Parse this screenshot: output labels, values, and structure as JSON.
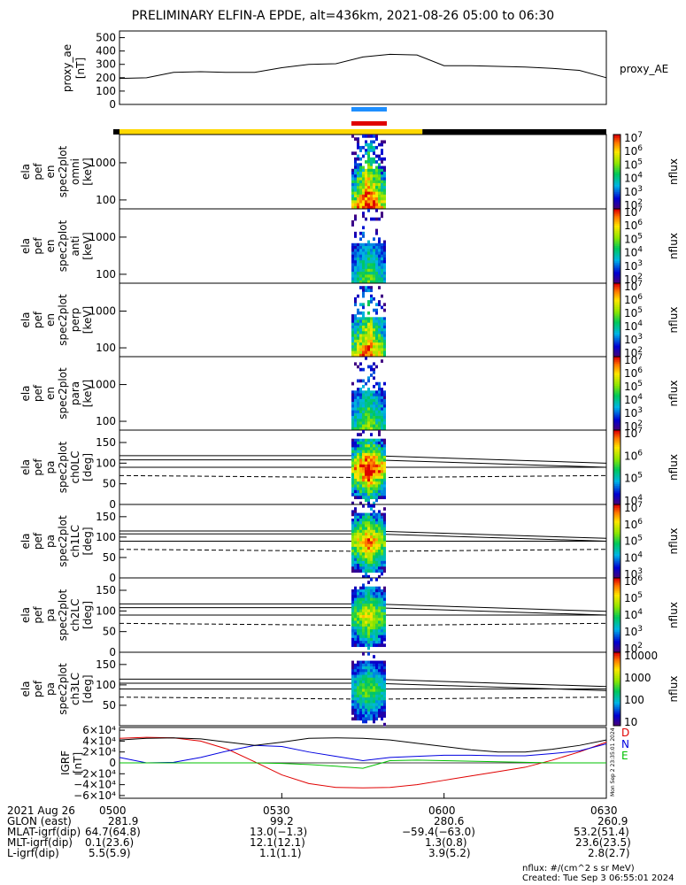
{
  "title": "PRELIMINARY ELFIN-A EPDE, alt=436km, 2021-08-26 05:00 to 06:30",
  "chart_data": [
    {
      "type": "line",
      "panel": "proxy_ae",
      "ylabel": [
        "proxy_ae",
        "[nT]"
      ],
      "right_label": "proxy_AE",
      "ylim": [
        0,
        550
      ],
      "yticks": [
        "500",
        "400",
        "300",
        "200",
        "100",
        "0"
      ],
      "x_minutes": [
        0,
        5,
        10,
        15,
        20,
        25,
        30,
        35,
        40,
        45,
        50,
        55,
        60,
        65,
        70,
        75,
        80,
        85,
        90
      ],
      "values": [
        195,
        200,
        240,
        245,
        240,
        240,
        275,
        300,
        305,
        355,
        375,
        370,
        290,
        290,
        285,
        280,
        270,
        255,
        200
      ],
      "grid": false
    },
    {
      "type": "heatmap",
      "panel": "ela_pef_en_spec2plot_omni",
      "ylabel": [
        "ela",
        "pef",
        "en",
        "spec2plot",
        "omni",
        "[keV]"
      ],
      "yscale": "log",
      "yticks": [
        "1000",
        "100"
      ],
      "colorbar": {
        "label": "nflux",
        "ticks": [
          "10^7",
          "10^6",
          "10^5",
          "10^4",
          "10^3",
          "10^2"
        ]
      }
    },
    {
      "type": "heatmap",
      "panel": "ela_pef_en_spec2plot_anti",
      "ylabel": [
        "ela",
        "pef",
        "en",
        "spec2plot",
        "anti",
        "[keV]"
      ],
      "yscale": "log",
      "yticks": [
        "1000",
        "100"
      ],
      "colorbar": {
        "label": "nflux",
        "ticks": [
          "10^7",
          "10^6",
          "10^5",
          "10^4",
          "10^3",
          "10^2"
        ]
      }
    },
    {
      "type": "heatmap",
      "panel": "ela_pef_en_spec2plot_perp",
      "ylabel": [
        "ela",
        "pef",
        "en",
        "spec2plot",
        "perp",
        "[keV]"
      ],
      "yscale": "log",
      "yticks": [
        "1000",
        "100"
      ],
      "colorbar": {
        "label": "nflux",
        "ticks": [
          "10^7",
          "10^6",
          "10^5",
          "10^4",
          "10^3",
          "10^2"
        ]
      }
    },
    {
      "type": "heatmap",
      "panel": "ela_pef_en_spec2plot_para",
      "ylabel": [
        "ela",
        "pef",
        "en",
        "spec2plot",
        "para",
        "[keV]"
      ],
      "yscale": "log",
      "yticks": [
        "1000",
        "100"
      ],
      "colorbar": {
        "label": "nflux",
        "ticks": [
          "10^7",
          "10^6",
          "10^5",
          "10^4",
          "10^3",
          "10^2"
        ]
      }
    },
    {
      "type": "heatmap",
      "panel": "ela_pef_pa_spec2plot_ch0LC",
      "ylabel": [
        "ela",
        "pef",
        "pa",
        "spec2plot",
        "ch0LC",
        "[deg]"
      ],
      "ylim": [
        0,
        180
      ],
      "yticks": [
        "150",
        "100",
        "50",
        "0"
      ],
      "colorbar": {
        "label": "nflux",
        "ticks": [
          "10^7",
          "10^6",
          "10^5",
          "10^4"
        ]
      }
    },
    {
      "type": "heatmap",
      "panel": "ela_pef_pa_spec2plot_ch1LC",
      "ylabel": [
        "ela",
        "pef",
        "pa",
        "spec2plot",
        "ch1LC",
        "[deg]"
      ],
      "ylim": [
        0,
        180
      ],
      "yticks": [
        "150",
        "100",
        "50",
        "0"
      ],
      "colorbar": {
        "label": "nflux",
        "ticks": [
          "10^7",
          "10^6",
          "10^5",
          "10^4",
          "10^3"
        ]
      }
    },
    {
      "type": "heatmap",
      "panel": "ela_pef_pa_spec2plot_ch2LC",
      "ylabel": [
        "ela",
        "pef",
        "pa",
        "spec2plot",
        "ch2LC",
        "[deg]"
      ],
      "ylim": [
        0,
        180
      ],
      "yticks": [
        "150",
        "100",
        "50",
        "0"
      ],
      "colorbar": {
        "label": "nflux",
        "ticks": [
          "10^6",
          "10^5",
          "10^4",
          "10^3",
          "10^2"
        ]
      }
    },
    {
      "type": "heatmap",
      "panel": "ela_pef_pa_spec2plot_ch3LC",
      "ylabel": [
        "ela",
        "pef",
        "pa",
        "spec2plot",
        "ch3LC",
        "[deg]"
      ],
      "ylim": [
        0,
        180
      ],
      "yticks": [
        "150",
        "100",
        "50"
      ],
      "colorbar": {
        "label": "nflux",
        "ticks": [
          "10000",
          "1000",
          "100",
          "10"
        ]
      }
    },
    {
      "type": "line",
      "panel": "IGRF",
      "ylabel": [
        "IGRF",
        "[nT]"
      ],
      "ylim": [
        -65000,
        65000
      ],
      "yticks": [
        "6×10⁴",
        "4×10⁴",
        "2×10⁴",
        "0",
        "−2×10⁴",
        "−4×10⁴",
        "−6×10⁴"
      ],
      "legend": [
        "D",
        "N",
        "E"
      ],
      "legend_colors": [
        "#e00000",
        "#0000e0",
        "#00c000"
      ],
      "x_minutes": [
        0,
        5,
        10,
        15,
        20,
        25,
        30,
        35,
        40,
        45,
        50,
        55,
        60,
        65,
        70,
        75,
        80,
        85,
        90
      ],
      "series": [
        {
          "name": "D",
          "color": "#e00000",
          "values": [
            45000,
            47000,
            46000,
            40000,
            25000,
            2000,
            -22000,
            -38000,
            -45000,
            -46000,
            -45000,
            -40000,
            -32000,
            -24000,
            -16000,
            -8000,
            5000,
            20000,
            38000
          ]
        },
        {
          "name": "N",
          "color": "#0000e0",
          "values": [
            10000,
            0,
            1000,
            10000,
            22000,
            32000,
            30000,
            20000,
            12000,
            4000,
            10000,
            12000,
            14000,
            14000,
            13000,
            13000,
            17000,
            22000,
            35000
          ]
        },
        {
          "name": "E",
          "color": "#00c000",
          "values": [
            0,
            0,
            0,
            0,
            0,
            0,
            -1000,
            -3000,
            -6000,
            -10000,
            4000,
            5000,
            4000,
            3000,
            2000,
            1000,
            0,
            0,
            0
          ]
        },
        {
          "name": "",
          "color": "#000000",
          "values": [
            42000,
            45000,
            46000,
            44000,
            38000,
            32000,
            38000,
            45000,
            46000,
            45000,
            42000,
            36000,
            30000,
            24000,
            20000,
            20000,
            25000,
            32000,
            42000
          ]
        }
      ]
    }
  ],
  "time_axis": {
    "x_range_minutes": [
      0,
      90
    ],
    "tick_minutes": [
      0,
      30,
      60,
      90
    ],
    "tick_labels": [
      "0500",
      "0530",
      "0600",
      "0630"
    ]
  },
  "annotations": {
    "date": "2021 Aug 26",
    "rows": [
      {
        "label": "GLON (east)",
        "values": [
          "281.9",
          "99.2",
          "280.6",
          "260.9"
        ]
      },
      {
        "label": "MLAT-igrf(dip)",
        "values": [
          "64.7(64.8)",
          "13.0(−1.3)",
          "−59.4(−63.0)",
          "53.2(51.4)"
        ]
      },
      {
        "label": "MLT-igrf(dip)",
        "values": [
          "0.1(23.6)",
          "12.1(12.1)",
          "1.3(0.8)",
          "23.6(23.5)"
        ]
      },
      {
        "label": "L-igrf(dip)",
        "values": [
          "5.5(5.9)",
          "1.1(1.1)",
          "3.9(5.2)",
          "2.8(2.7)"
        ]
      }
    ],
    "units_note": "nflux: #/(cm^2 s sr MeV)",
    "created": "Created: Tue Sep  3 06:55:01 2024",
    "side_stamp": "Mon Sep 2 23:35:01 2024"
  },
  "status_bars": {
    "top_blue": "#1e8fff",
    "top_red": "#e00000",
    "yellow": "#ffd800",
    "black": "#000000",
    "yellow_end_minutes": 56
  }
}
